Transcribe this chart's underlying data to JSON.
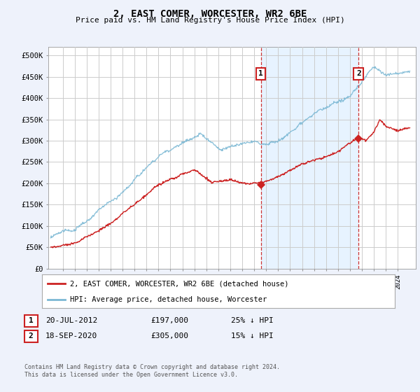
{
  "title": "2, EAST COMER, WORCESTER, WR2 6BE",
  "subtitle": "Price paid vs. HM Land Registry's House Price Index (HPI)",
  "background_color": "#eef2fb",
  "plot_background": "#ffffff",
  "shaded_region_color": "#ddeeff",
  "yticks": [
    0,
    50000,
    100000,
    150000,
    200000,
    250000,
    300000,
    350000,
    400000,
    450000,
    500000
  ],
  "ytick_labels": [
    "£0",
    "£50K",
    "£100K",
    "£150K",
    "£200K",
    "£250K",
    "£300K",
    "£350K",
    "£400K",
    "£450K",
    "£500K"
  ],
  "hpi_color": "#7bb8d4",
  "price_color": "#cc2222",
  "marker1_date_x": 2012.55,
  "marker1_price": 197000,
  "marker2_date_x": 2020.72,
  "marker2_price": 305000,
  "dashed_line1_x": 2012.55,
  "dashed_line2_x": 2020.72,
  "legend_label_price": "2, EAST COMER, WORCESTER, WR2 6BE (detached house)",
  "legend_label_hpi": "HPI: Average price, detached house, Worcester",
  "annotation1_label": "1",
  "annotation2_label": "2",
  "table_row1": [
    "1",
    "20-JUL-2012",
    "£197,000",
    "25% ↓ HPI"
  ],
  "table_row2": [
    "2",
    "18-SEP-2020",
    "£305,000",
    "15% ↓ HPI"
  ],
  "footer": "Contains HM Land Registry data © Crown copyright and database right 2024.\nThis data is licensed under the Open Government Licence v3.0.",
  "xmin": 1994.8,
  "xmax": 2025.5,
  "ymin": 0,
  "ymax": 520000
}
